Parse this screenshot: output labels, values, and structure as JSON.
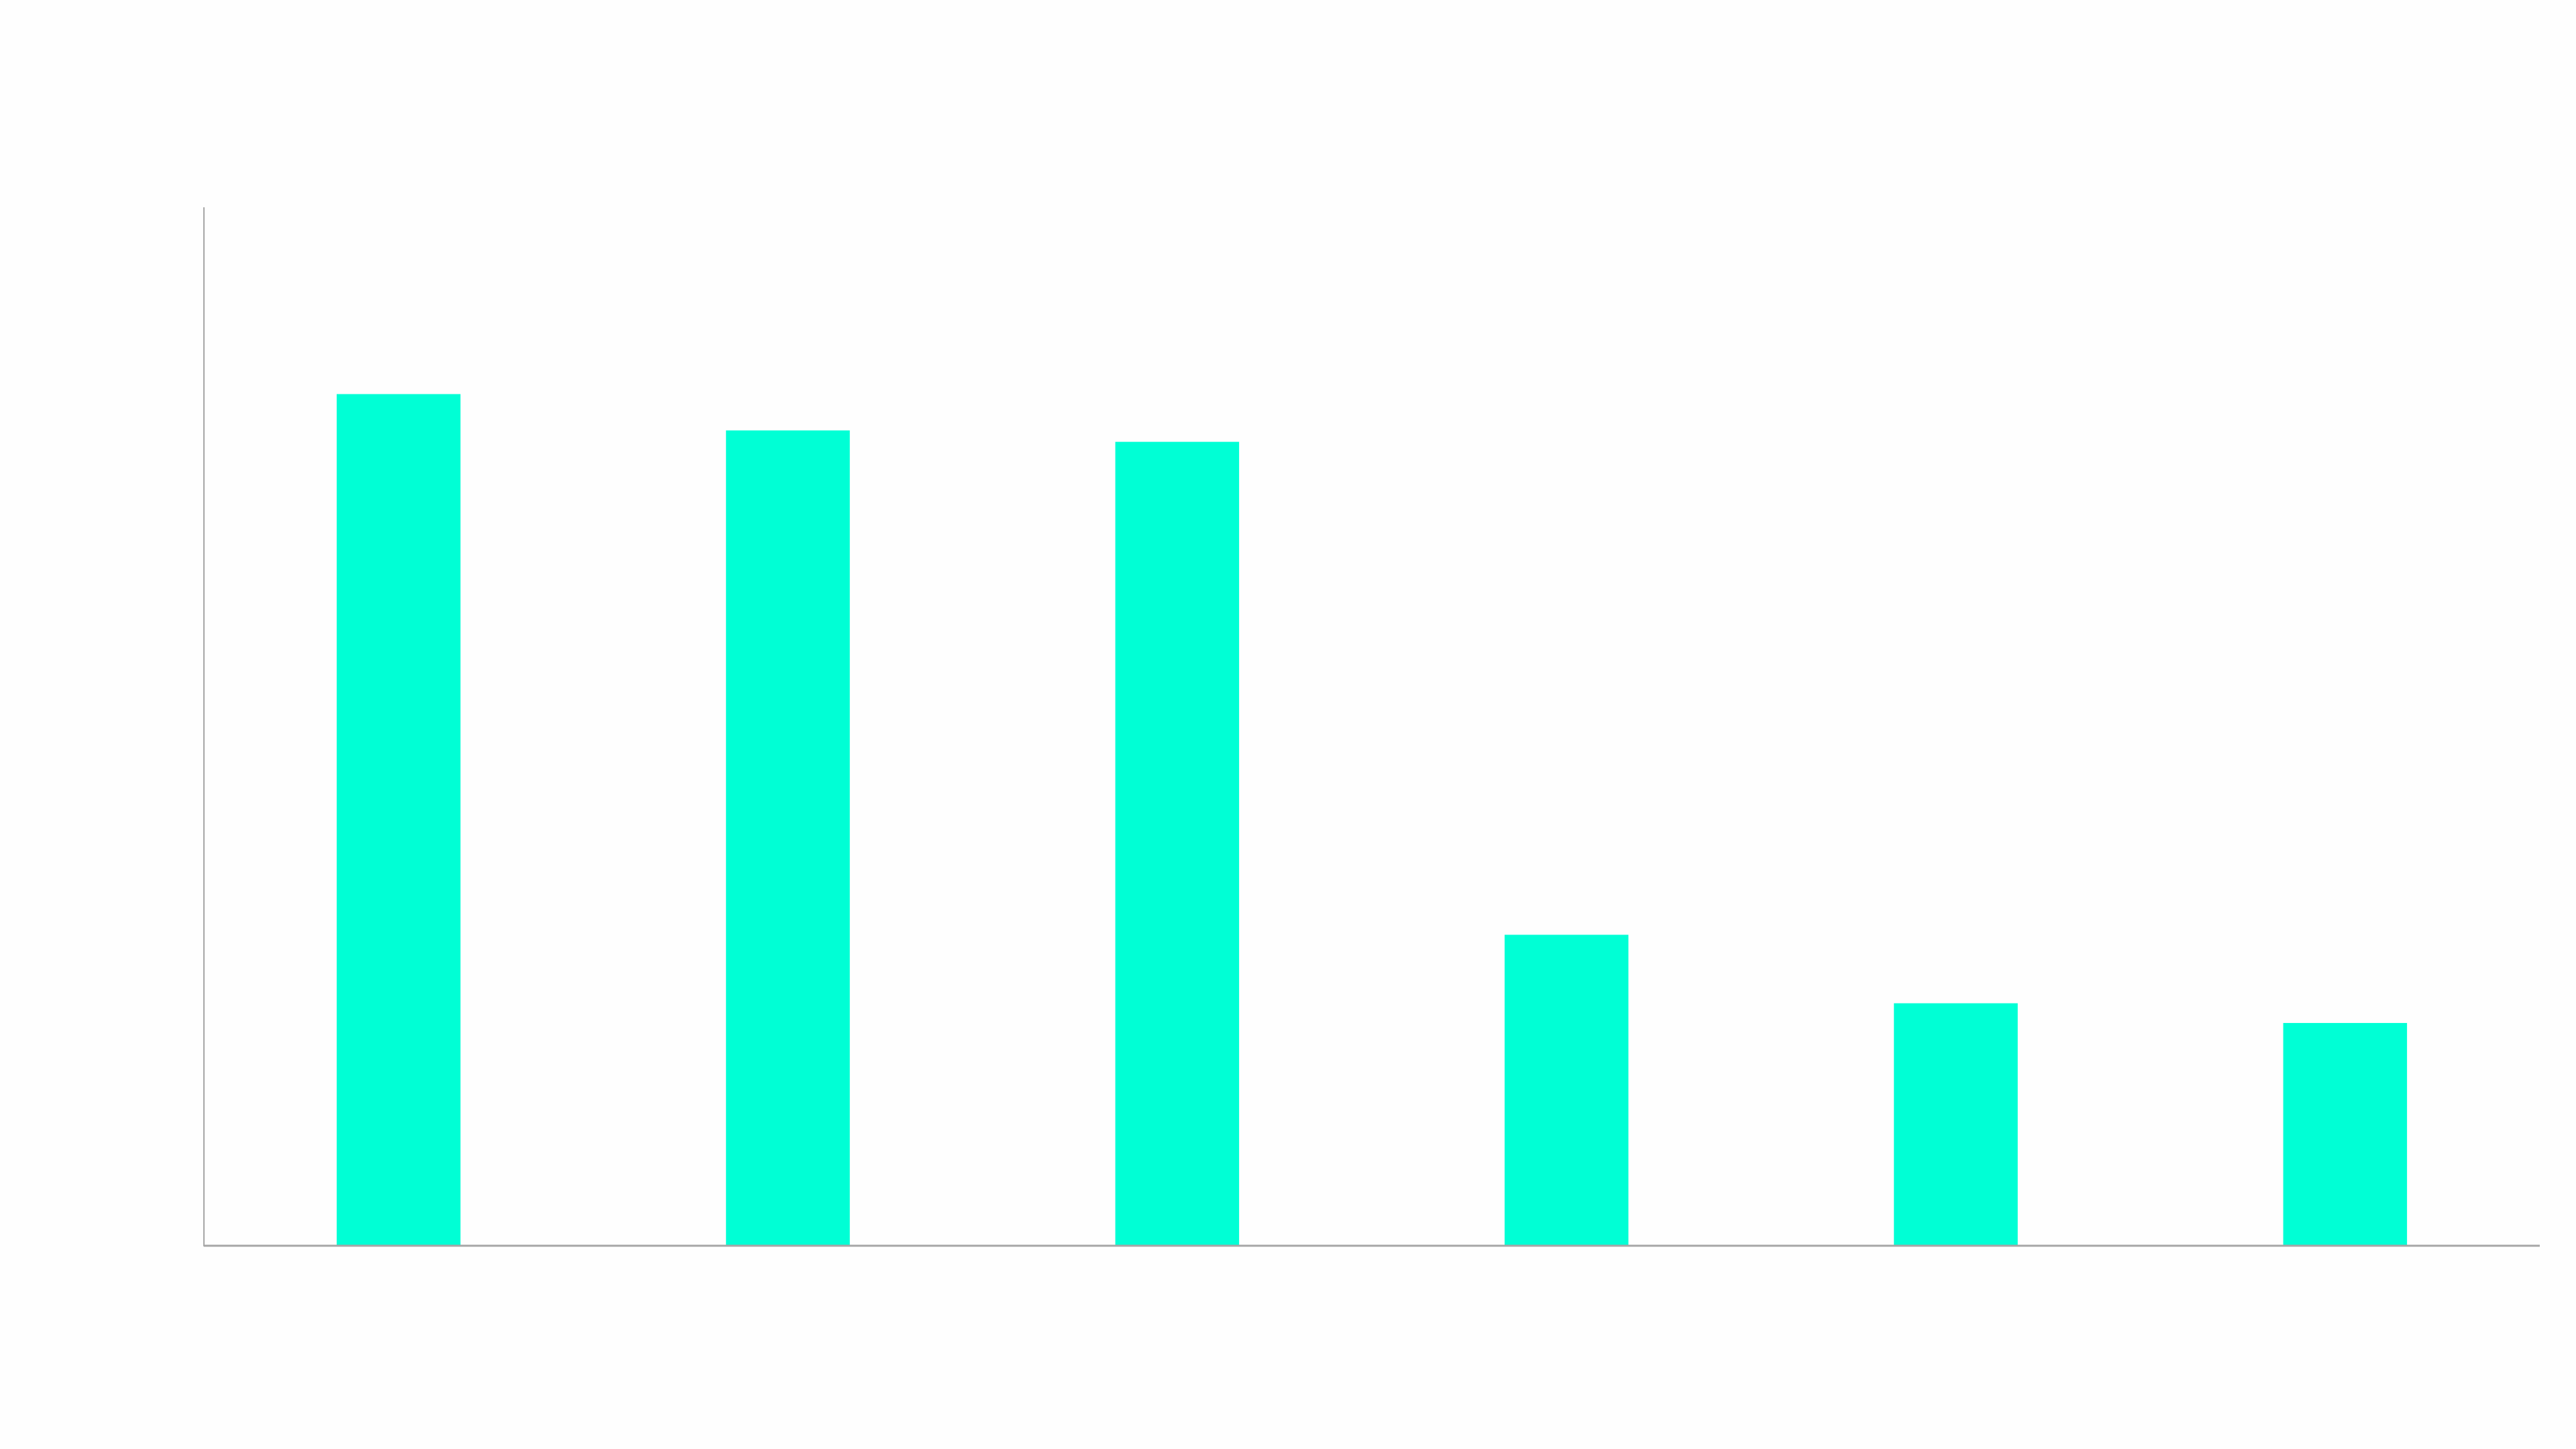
{
  "chart_data": {
    "type": "bar",
    "title": "",
    "xlabel": "",
    "ylabel": "",
    "categories": [
      "",
      "",
      "",
      "",
      "",
      ""
    ],
    "values": [
      82.0,
      78.5,
      77.4,
      29.9,
      23.3,
      21.4
    ],
    "ylim": [
      0,
      100
    ],
    "grid": false,
    "legend": "none",
    "colors": {
      "bar": "#00ffd5",
      "axis": "#a6a6a6",
      "background": "#fefefe"
    }
  }
}
